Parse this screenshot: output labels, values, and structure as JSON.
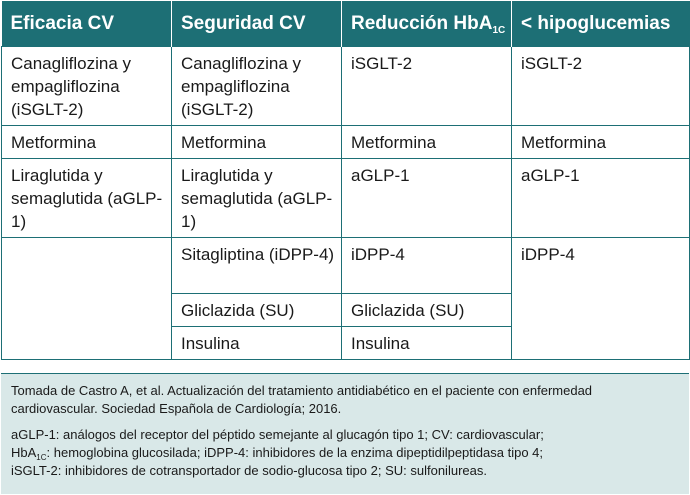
{
  "table": {
    "headers": {
      "col1": "Eficacia CV",
      "col2": "Seguridad CV",
      "col3_main": "Reducción HbA",
      "col3_sub": "1C",
      "col4": "< hipoglucemias"
    },
    "rows": [
      [
        "Canagliflozina y empagliflozina (iSGLT-2)",
        "Canagliflozina y empagliflozina (iSGLT-2)",
        "iSGLT-2",
        "iSGLT-2"
      ],
      [
        "Metformina",
        "Metformina",
        "Metformina",
        "Metformina"
      ],
      [
        "Liraglutida y semaglutida (aGLP-1)",
        "Liraglutida y semaglutida (aGLP-1)",
        "aGLP-1",
        "aGLP-1"
      ],
      [
        "",
        "Sitagliptina (iDPP-4)",
        "iDPP-4",
        "iDPP-4"
      ],
      [
        "",
        "Gliclazida (SU)",
        "Gliclazida (SU)",
        ""
      ],
      [
        "",
        "Insulina",
        "Insulina",
        ""
      ]
    ]
  },
  "footer": {
    "reference": "Tomada de Castro A, et al. Actualización del tratamiento antidiabético en el paciente con enfermedad cardiovascular. Sociedad Española de Cardiología; 2016.",
    "abbr_line1": "aGLP-1: análogos del receptor del péptido semejante al glucagón tipo 1; CV: cardiovascular;",
    "abbr_line2_hba": "HbA",
    "abbr_line2_sub": "1C",
    "abbr_line2_rest": ": hemoglobina glucosilada; iDPP-4: inhibidores de la enzima dipeptidilpeptidasa tipo 4;",
    "abbr_line3": "iSGLT-2: inhibidores de cotransportador de sodio-glucosa tipo 2; SU: sulfonilureas."
  },
  "colors": {
    "header_bg": "#1d6f75",
    "footer_bg": "#d9e8e8",
    "border": "#1d6f75"
  }
}
